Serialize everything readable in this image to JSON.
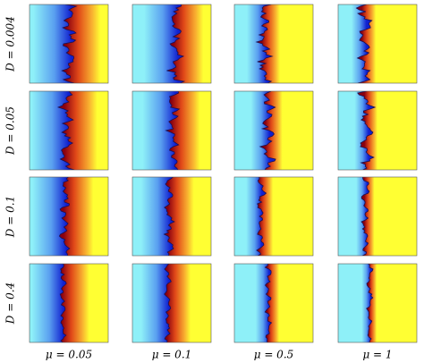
{
  "rows": [
    {
      "label": "D = 0.004"
    },
    {
      "label": "D = 0.05"
    },
    {
      "label": "D = 0.1"
    },
    {
      "label": "D = 0.4"
    }
  ],
  "columns": [
    {
      "label": "μ = 0.05"
    },
    {
      "label": "μ = 0.1"
    },
    {
      "label": "μ = 0.5"
    },
    {
      "label": "μ = 1"
    }
  ]
}
